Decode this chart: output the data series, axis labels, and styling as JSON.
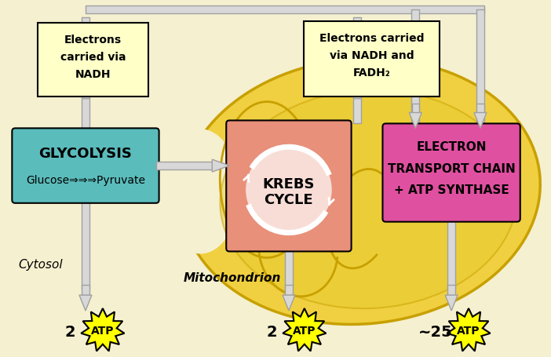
{
  "bg_color": "#f5f0d0",
  "mito_color": "#f0d040",
  "mito_outline": "#c8a000",
  "glycolysis_color": "#5bbcbc",
  "glycolysis_text_1": "GLYCOLYSIS",
  "glycolysis_text_2": "Glucose⇒⇒⇒Pyruvate",
  "krebs_box_color": "#e8907a",
  "krebs_text_1": "KREBS",
  "krebs_text_2": "CYCLE",
  "etc_color": "#e050a0",
  "etc_text": [
    "ELECTRON",
    "TRANSPORT CHAIN",
    "+ ATP SYNTHASE"
  ],
  "electrons_nadh_text": [
    "Electrons",
    "carried via",
    "NADH"
  ],
  "electrons_nadh_fadh2_text": [
    "Electrons carried",
    "via NADH and",
    "FADH₂"
  ],
  "cytosol_text": "Cytosol",
  "mitochondrion_text": "Mitochondrion",
  "atp_color": "#ffff00",
  "atp_counts": [
    "2",
    "2",
    "~25"
  ],
  "arrow_fill": "#e0e0e0",
  "arrow_outline": "#a0a0a0",
  "pipe_color": "#d8d8d8",
  "pipe_outline": "#a0a0a0"
}
